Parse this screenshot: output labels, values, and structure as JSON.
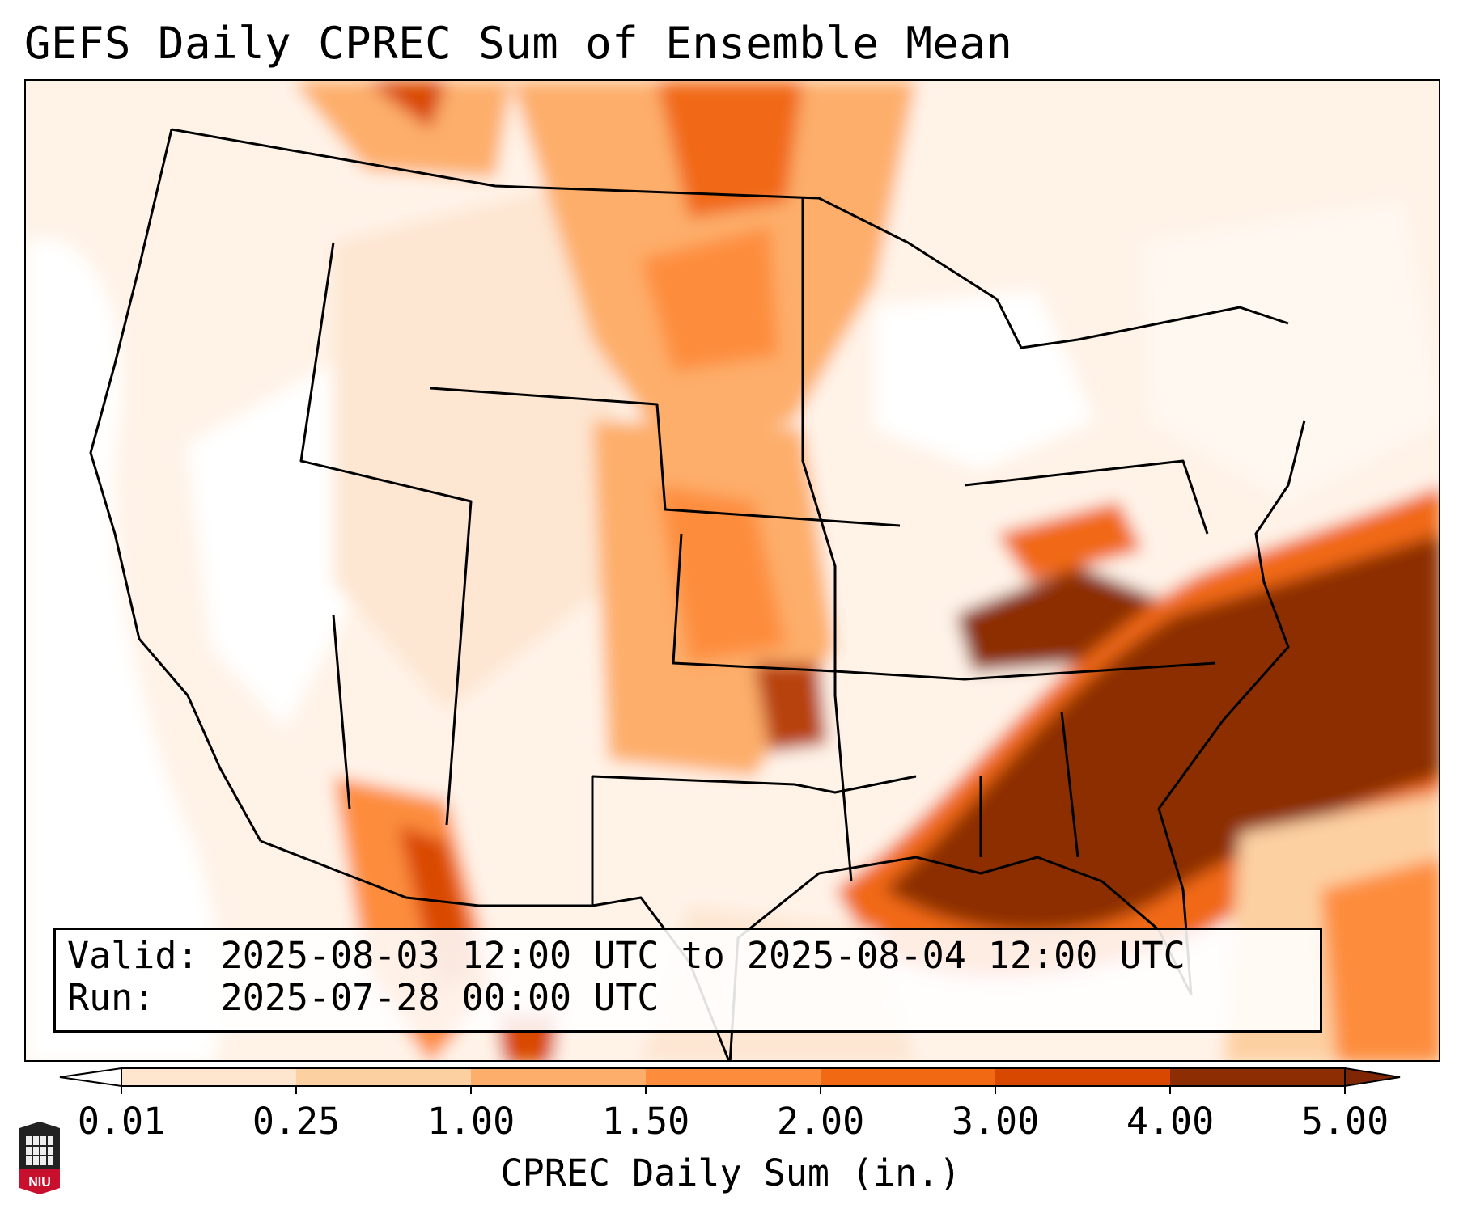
{
  "title": "GEFS Daily CPREC Sum of Ensemble Mean",
  "info": {
    "valid_label": "Valid:",
    "valid_value": "2025-08-03 12:00 UTC to 2025-08-04 12:00 UTC",
    "run_label": "Run:",
    "run_value": "2025-07-28 00:00 UTC"
  },
  "colorbar": {
    "label": "CPREC Daily Sum (in.)",
    "ticks": [
      "0.01",
      "0.25",
      "1.00",
      "1.50",
      "2.00",
      "3.00",
      "4.00",
      "5.00"
    ],
    "colors": [
      "#fff5eb",
      "#fee6ce",
      "#fdd0a2",
      "#fdae6b",
      "#fd8d3c",
      "#f16913",
      "#d94801",
      "#8c2d04"
    ],
    "under_color": "#ffffff",
    "over_color": "#7f2704"
  },
  "logo": {
    "text": "NIU",
    "primary_color": "#c8102e"
  }
}
